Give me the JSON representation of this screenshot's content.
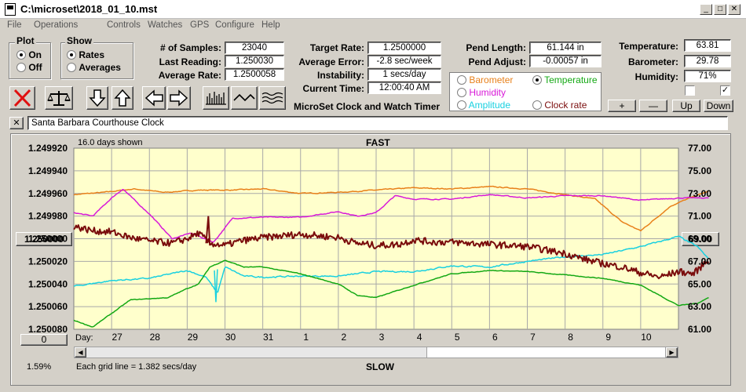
{
  "window": {
    "title": "C:\\microset\\2018_01_10.mst"
  },
  "menu": [
    "File",
    "Operations",
    "Controls",
    "Watches",
    "GPS",
    "Configure",
    "Help"
  ],
  "plot_group": {
    "title": "Plot",
    "options": [
      "On",
      "Off"
    ],
    "selected": "On"
  },
  "show_group": {
    "title": "Show",
    "options": [
      "Rates",
      "Averages"
    ],
    "selected": "Rates"
  },
  "stats": {
    "samples_label": "# of Samples:",
    "samples": "23040",
    "last_label": "Last Reading:",
    "last": "1.250030",
    "avg_rate_label": "Average Rate:",
    "avg_rate": "1.2500058",
    "target_label": "Target Rate:",
    "target": "1.2500000",
    "avg_err_label": "Average Error:",
    "avg_err": "-2.8 sec/week",
    "instab_label": "Instability:",
    "instab": "1 secs/day",
    "time_label": "Current Time:",
    "time": "12:00:40 AM",
    "pend_len_label": "Pend Length:",
    "pend_len": "61.144 in",
    "pend_adj_label": "Pend Adjust:",
    "pend_adj": "-0.00057 in",
    "temp_label": "Temperature:",
    "temp": "63.81",
    "baro_label": "Barometer:",
    "baro": "29.78",
    "hum_label": "Humidity:",
    "hum": "71%"
  },
  "app_caption": "MicroSet Clock and Watch Timer",
  "sensor_options": [
    {
      "label": "Barometer",
      "color": "#e8801a",
      "selected": false
    },
    {
      "label": "Temperature",
      "color": "#13a813",
      "selected": true
    },
    {
      "label": "Humidity",
      "color": "#d81ad8",
      "selected": false
    },
    {
      "label": "Amplitude",
      "color": "#18d0e0",
      "selected": false
    },
    {
      "label": "Clock rate",
      "color": "#7a0c0c",
      "selected": false
    }
  ],
  "sensor_buttons": [
    "+",
    "—",
    "Up",
    "Down"
  ],
  "checkboxes": [
    false,
    true
  ],
  "toolbar_icons": [
    "stop-icon",
    "scale-icon",
    "arrow-down-icon",
    "arrow-up-icon",
    "arrow-left-icon",
    "arrow-right-icon",
    "bars-icon",
    "wave-icon",
    "multiwave-icon"
  ],
  "clock_name": "Santa Barbara Courthouse Clock",
  "close_x": "✕",
  "chart_header": {
    "days_shown": "16.0 days shown",
    "fast": "FAST",
    "slow": "SLOW",
    "grid_note": "Each grid line = 1.382 secs/day",
    "percent": "1.59%"
  },
  "center_button": "1.250000",
  "right_button": "69.00",
  "bottom_left_button": "0",
  "day_label": "Day:",
  "colors": {
    "plot_bg": "#ffffcc",
    "grid": "#a8a8a8",
    "barometer": "#e8801a",
    "temperature": "#13a813",
    "humidity": "#d81ad8",
    "amplitude": "#18d0e0",
    "clock_rate": "#7a0c0c"
  },
  "chart_data": {
    "type": "line",
    "x_ticks": [
      "27",
      "28",
      "29",
      "30",
      "31",
      "1",
      "2",
      "3",
      "4",
      "5",
      "6",
      "7",
      "8",
      "9",
      "10"
    ],
    "y_left_ticks": [
      "1.249920",
      "1.249940",
      "1.249960",
      "1.249980",
      "1.250000",
      "1.250020",
      "1.250040",
      "1.250060",
      "1.250080"
    ],
    "y_right_ticks": [
      "77.00",
      "75.00",
      "73.00",
      "71.00",
      "69.00",
      "67.00",
      "65.00",
      "63.00",
      "61.00"
    ],
    "x_range_days": [
      0,
      16
    ],
    "ylim_left": [
      1.25008,
      1.24992
    ],
    "ylim_right": [
      61,
      77
    ],
    "grid": true,
    "series": [
      {
        "name": "Barometer",
        "color": "#e8801a",
        "noise": 0.08,
        "smooth": 2,
        "points": [
          [
            0,
            72.9
          ],
          [
            0.8,
            73.1
          ],
          [
            1.6,
            73.4
          ],
          [
            2.4,
            73.1
          ],
          [
            3.3,
            73.3
          ],
          [
            4.2,
            73.3
          ],
          [
            5.0,
            73.4
          ],
          [
            6.0,
            73.0
          ],
          [
            7.0,
            73.1
          ],
          [
            8.0,
            73.3
          ],
          [
            9.0,
            73.5
          ],
          [
            10.0,
            73.4
          ],
          [
            11.0,
            73.6
          ],
          [
            12.0,
            73.4
          ],
          [
            13.0,
            72.9
          ],
          [
            13.8,
            72.5
          ],
          [
            14.5,
            70.5
          ],
          [
            15.0,
            69.7
          ],
          [
            15.4,
            70.8
          ],
          [
            15.8,
            71.9
          ],
          [
            16.3,
            72.6
          ],
          [
            16.8,
            73.2
          ]
        ]
      },
      {
        "name": "Humidity",
        "color": "#d81ad8",
        "noise": 0.08,
        "smooth": 2,
        "points": [
          [
            0,
            71.3
          ],
          [
            0.5,
            71.0
          ],
          [
            1.0,
            72.6
          ],
          [
            1.3,
            73.4
          ],
          [
            1.7,
            72.1
          ],
          [
            2.0,
            71.2
          ],
          [
            2.6,
            69.0
          ],
          [
            3.1,
            69.5
          ],
          [
            3.7,
            68.7
          ],
          [
            4.2,
            70.8
          ],
          [
            5.0,
            70.9
          ],
          [
            6.0,
            70.9
          ],
          [
            7.0,
            71.4
          ],
          [
            7.5,
            71.0
          ],
          [
            8.0,
            71.3
          ],
          [
            8.5,
            72.8
          ],
          [
            9.0,
            72.5
          ],
          [
            10.0,
            72.5
          ],
          [
            11.0,
            72.9
          ],
          [
            12.0,
            72.6
          ],
          [
            13.0,
            72.8
          ],
          [
            14.0,
            72.8
          ],
          [
            15.0,
            72.4
          ],
          [
            16.0,
            72.6
          ],
          [
            16.8,
            72.6
          ]
        ]
      },
      {
        "name": "Amplitude",
        "color": "#18d0e0",
        "noise": 0.12,
        "smooth": 2,
        "points": [
          [
            0,
            64.8
          ],
          [
            1.0,
            65.3
          ],
          [
            2.0,
            65.5
          ],
          [
            3.0,
            66.2
          ],
          [
            3.5,
            65.6
          ],
          [
            3.8,
            64.2
          ],
          [
            4.0,
            66.5
          ],
          [
            4.5,
            65.7
          ],
          [
            5.0,
            65.6
          ],
          [
            6.0,
            65.7
          ],
          [
            7.0,
            65.7
          ],
          [
            8.0,
            66.1
          ],
          [
            9.0,
            66.1
          ],
          [
            10.0,
            66.6
          ],
          [
            11.0,
            66.5
          ],
          [
            12.0,
            67.0
          ],
          [
            13.0,
            67.4
          ],
          [
            14.0,
            67.6
          ],
          [
            15.0,
            68.3
          ],
          [
            16.0,
            69.2
          ],
          [
            16.5,
            68.3
          ],
          [
            16.8,
            67.2
          ]
        ]
      },
      {
        "name": "Temperature",
        "color": "#13a813",
        "noise": 0.06,
        "smooth": 2,
        "points": [
          [
            0,
            61.8
          ],
          [
            0.5,
            61.2
          ],
          [
            1.0,
            62.4
          ],
          [
            1.5,
            63.6
          ],
          [
            2.0,
            63.7
          ],
          [
            2.5,
            63.8
          ],
          [
            3.0,
            64.6
          ],
          [
            3.3,
            65.0
          ],
          [
            3.6,
            66.5
          ],
          [
            4.0,
            67.1
          ],
          [
            4.5,
            66.5
          ],
          [
            5.0,
            66.5
          ],
          [
            6.0,
            65.9
          ],
          [
            7.0,
            65.0
          ],
          [
            7.5,
            64.0
          ],
          [
            8.0,
            63.8
          ],
          [
            9.0,
            64.9
          ],
          [
            10.0,
            65.9
          ],
          [
            11.0,
            66.2
          ],
          [
            12.0,
            66.1
          ],
          [
            13.0,
            65.8
          ],
          [
            14.0,
            65.5
          ],
          [
            15.0,
            64.9
          ],
          [
            16.0,
            63.1
          ],
          [
            16.5,
            63.3
          ],
          [
            16.8,
            63.8
          ]
        ]
      },
      {
        "name": "Clock rate",
        "color": "#7a0c0c",
        "noise": 0.3,
        "smooth": 1,
        "width": 2,
        "points": [
          [
            0,
            70.1
          ],
          [
            0.5,
            69.7
          ],
          [
            1.0,
            69.6
          ],
          [
            1.5,
            69.1
          ],
          [
            2.0,
            68.8
          ],
          [
            2.6,
            68.6
          ],
          [
            3.0,
            69.0
          ],
          [
            3.3,
            69.5
          ],
          [
            3.6,
            68.6
          ],
          [
            4.0,
            68.4
          ],
          [
            4.4,
            68.8
          ],
          [
            5.0,
            69.1
          ],
          [
            6.0,
            69.4
          ],
          [
            7.0,
            69.1
          ],
          [
            7.5,
            68.6
          ],
          [
            8.0,
            68.4
          ],
          [
            8.6,
            68.5
          ],
          [
            9.0,
            68.9
          ],
          [
            9.5,
            68.7
          ],
          [
            10.0,
            68.7
          ],
          [
            11.0,
            68.5
          ],
          [
            12.0,
            68.3
          ],
          [
            12.5,
            68.0
          ],
          [
            13.0,
            67.7
          ],
          [
            13.5,
            67.2
          ],
          [
            14.0,
            66.8
          ],
          [
            14.5,
            66.5
          ],
          [
            15.0,
            66.0
          ],
          [
            15.5,
            65.6
          ],
          [
            16.0,
            66.1
          ],
          [
            16.4,
            65.9
          ],
          [
            16.8,
            67.2
          ]
        ]
      }
    ]
  }
}
